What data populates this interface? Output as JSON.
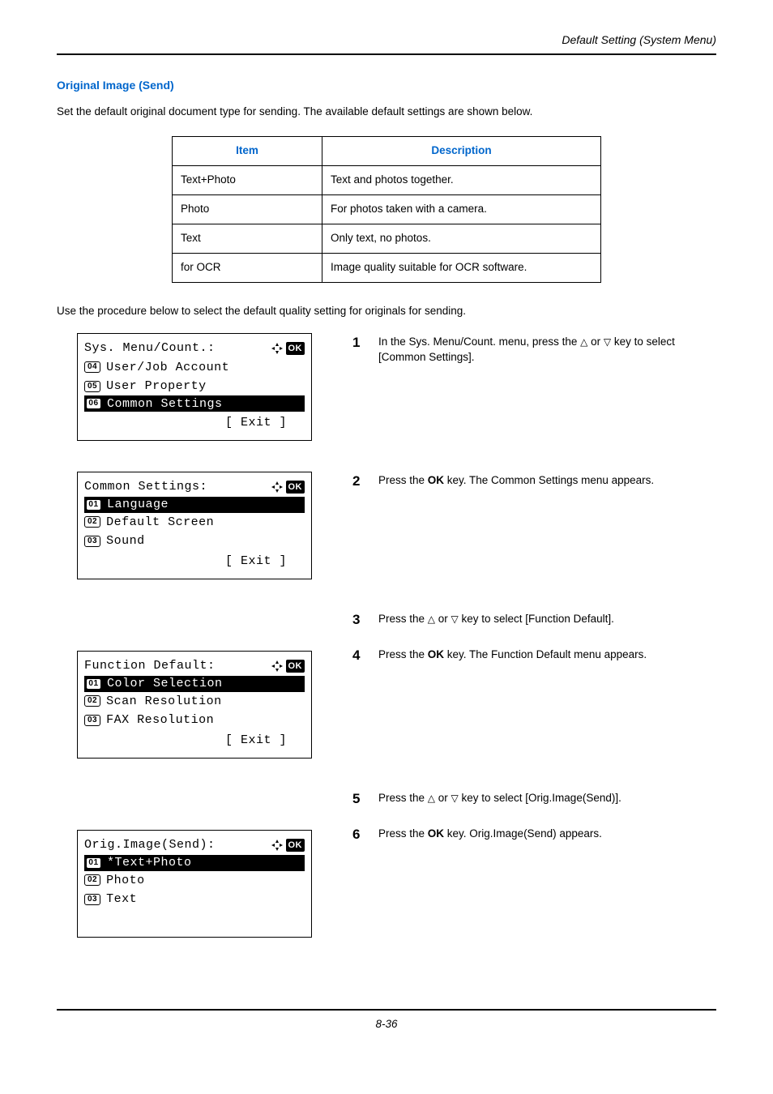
{
  "chapter_header": "Default Setting (System Menu)",
  "section_title": "Original Image (Send)",
  "intro": "Set the default original document type for sending. The available default settings are shown below.",
  "table": {
    "columns": [
      "Item",
      "Description"
    ],
    "rows": [
      [
        "Text+Photo",
        "Text and photos together."
      ],
      [
        "Photo",
        "For photos taken with a camera."
      ],
      [
        "Text",
        "Only text, no photos."
      ],
      [
        "for OCR",
        "Image quality suitable for OCR software."
      ]
    ]
  },
  "proc_intro": "Use the procedure below to select the default quality setting for originals for sending.",
  "lcds": [
    {
      "title": "Sys. Menu/Count.:",
      "lines": [
        {
          "num": "04",
          "text": "User/Job Account"
        },
        {
          "num": "05",
          "text": "User Property"
        },
        {
          "num": "06",
          "text": "Common Settings",
          "hl": true
        }
      ],
      "exit": "[  Exit   ]"
    },
    {
      "title": "Common Settings:",
      "lines": [
        {
          "num": "01",
          "text": "Language",
          "hl": true,
          "hatch": true
        },
        {
          "num": "02",
          "text": "Default Screen"
        },
        {
          "num": "03",
          "text": "Sound"
        }
      ],
      "exit": "[  Exit   ]"
    },
    {
      "title": "Function Default:",
      "lines": [
        {
          "num": "01",
          "text": "Color Selection",
          "hl": true
        },
        {
          "num": "02",
          "text": "Scan Resolution"
        },
        {
          "num": "03",
          "text": "FAX Resolution"
        }
      ],
      "exit": "[  Exit   ]"
    },
    {
      "title": "Orig.Image(Send):",
      "lines": [
        {
          "num": "01",
          "text": "*Text+Photo",
          "hl": true,
          "hatch": true
        },
        {
          "num": "02",
          "text": "Photo"
        },
        {
          "num": "03",
          "text": "Text"
        }
      ],
      "exit": ""
    }
  ],
  "steps": [
    {
      "n": "1",
      "pre": "In the Sys. Menu/Count. menu, press the ",
      "tri1": "△",
      "mid1": " or ",
      "tri2": "▽",
      "post": " key to select [Common Settings]."
    },
    {
      "n": "2",
      "pre": "Press the ",
      "bold": "OK",
      "post": " key. The Common Settings menu appears."
    },
    {
      "n": "3",
      "pre": "Press the ",
      "tri1": "△",
      "mid1": " or ",
      "tri2": "▽",
      "post": " key to select [Function Default]."
    },
    {
      "n": "4",
      "pre": "Press the ",
      "bold": "OK",
      "post": " key. The Function Default menu appears."
    },
    {
      "n": "5",
      "pre": "Press the ",
      "tri1": "△",
      "mid1": " or ",
      "tri2": "▽",
      "post": " key to select [Orig.Image(Send)]."
    },
    {
      "n": "6",
      "pre": "Press the ",
      "bold": "OK",
      "post": " key. Orig.Image(Send) appears."
    }
  ],
  "page_number": "8-36",
  "ok_label": "OK",
  "nav_glyph": "✦"
}
